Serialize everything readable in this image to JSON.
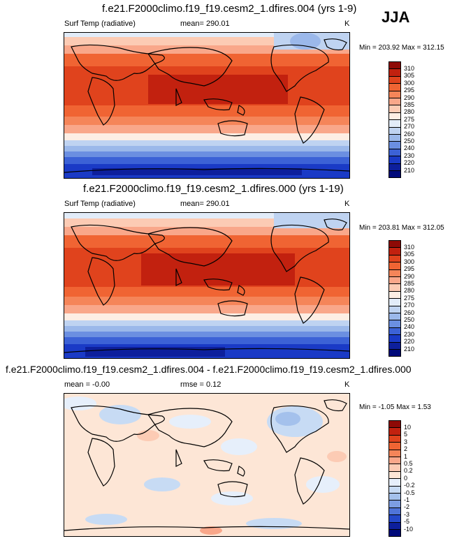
{
  "season": "JJA",
  "panels": [
    {
      "id": "p1",
      "title": "f.e21.F2000climo.f19_f19.cesm2_1.dfires.004 (yrs 1-9)",
      "left_label": "Surf Temp (radiative)",
      "center_label": "mean= 290.01",
      "units": "K",
      "minmax": "Min = 203.92 Max = 312.15",
      "levels": [
        "310",
        "305",
        "300",
        "295",
        "290",
        "285",
        "280",
        "275",
        "270",
        "260",
        "250",
        "240",
        "230",
        "220",
        "210"
      ],
      "colors": [
        "#8e0a06",
        "#c2210f",
        "#e0431d",
        "#f06433",
        "#f58559",
        "#f9a78a",
        "#fccbb4",
        "#fdeee4",
        "#e2ecf9",
        "#bfd3f1",
        "#9bb8ea",
        "#6b8fe1",
        "#3c62d6",
        "#1a3ac6",
        "#0d1f9c",
        "#000a7a"
      ]
    },
    {
      "id": "p2",
      "title": "f.e21.F2000climo.f19_f19.cesm2_1.dfires.000 (yrs 1-19)",
      "left_label": "Surf Temp (radiative)",
      "center_label": "mean= 290.01",
      "units": "K",
      "minmax": "Min = 203.81 Max = 312.05",
      "levels": [
        "310",
        "305",
        "300",
        "295",
        "290",
        "285",
        "280",
        "275",
        "270",
        "260",
        "250",
        "240",
        "230",
        "220",
        "210"
      ],
      "colors": [
        "#8e0a06",
        "#c2210f",
        "#e0431d",
        "#f06433",
        "#f58559",
        "#f9a78a",
        "#fccbb4",
        "#fdeee4",
        "#e2ecf9",
        "#bfd3f1",
        "#9bb8ea",
        "#6b8fe1",
        "#3c62d6",
        "#1a3ac6",
        "#0d1f9c",
        "#000a7a"
      ]
    },
    {
      "id": "p3",
      "title": "f.e21.F2000climo.f19_f19.cesm2_1.dfires.004 - f.e21.F2000climo.f19_f19.cesm2_1.dfires.000",
      "left_label": "mean =  -0.00",
      "center_label": "rmse =   0.12",
      "units": "K",
      "minmax": "Min =  -1.05 Max =   1.53",
      "levels": [
        "10",
        "5",
        "3",
        "2",
        "1",
        "0.5",
        "0.2",
        "0",
        "-0.2",
        "-0.5",
        "-1",
        "-2",
        "-3",
        "-5",
        "-10"
      ],
      "colors": [
        "#8e0a06",
        "#c2210f",
        "#e0431d",
        "#f06433",
        "#f58559",
        "#f9a78a",
        "#fccbb4",
        "#fde6d6",
        "#e6effb",
        "#c7dbf4",
        "#a4c1ec",
        "#7c9de3",
        "#4f74d8",
        "#2448c9",
        "#0d1f9c",
        "#000a7a"
      ]
    }
  ],
  "chart_data": [
    {
      "type": "heatmap",
      "title": "f.e21.F2000climo.f19_f19.cesm2_1.dfires.004 (yrs 1-9)",
      "variable": "Surf Temp (radiative)",
      "units": "K",
      "mean": 290.01,
      "min": 203.92,
      "max": 312.15,
      "contour_levels": [
        210,
        220,
        230,
        240,
        250,
        260,
        270,
        275,
        280,
        285,
        290,
        295,
        300,
        305,
        310
      ]
    },
    {
      "type": "heatmap",
      "title": "f.e21.F2000climo.f19_f19.cesm2_1.dfires.000 (yrs 1-19)",
      "variable": "Surf Temp (radiative)",
      "units": "K",
      "mean": 290.01,
      "min": 203.81,
      "max": 312.05,
      "contour_levels": [
        210,
        220,
        230,
        240,
        250,
        260,
        270,
        275,
        280,
        285,
        290,
        295,
        300,
        305,
        310
      ]
    },
    {
      "type": "heatmap",
      "title": "f.e21.F2000climo.f19_f19.cesm2_1.dfires.004 - f.e21.F2000climo.f19_f19.cesm2_1.dfires.000",
      "units": "K",
      "mean": -0.0,
      "rmse": 0.12,
      "min": -1.05,
      "max": 1.53,
      "contour_levels": [
        -10,
        -5,
        -3,
        -2,
        -1,
        -0.5,
        -0.2,
        0,
        0.2,
        0.5,
        1,
        2,
        3,
        5,
        10
      ]
    }
  ]
}
